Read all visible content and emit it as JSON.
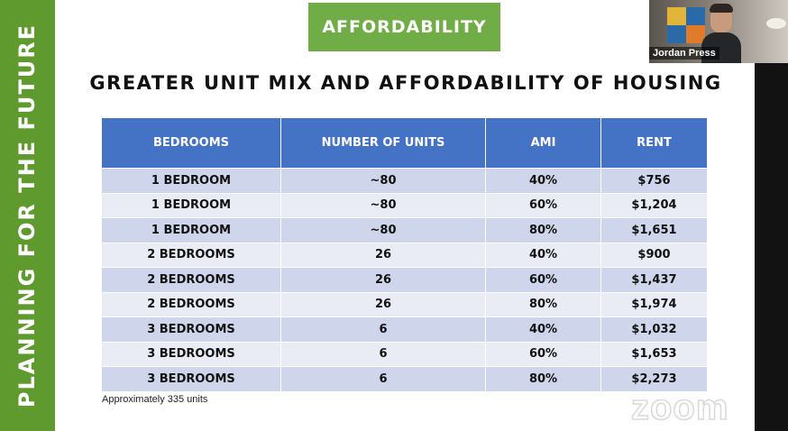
{
  "side_banner": {
    "text": "Planning for the Future"
  },
  "slide": {
    "section_label": "Affordability",
    "headline": "GREATER UNIT MIX AND AFFORDABILITY OF HOUSING",
    "table": {
      "headers": [
        "BEDROOMS",
        "NUMBER OF UNITS",
        "AMI",
        "RENT"
      ],
      "rows": [
        [
          "1 BEDROOM",
          "~80",
          "40%",
          "$756"
        ],
        [
          "1 BEDROOM",
          "~80",
          "60%",
          "$1,204"
        ],
        [
          "1 BEDROOM",
          "~80",
          "80%",
          "$1,651"
        ],
        [
          "2 BEDROOMS",
          "26",
          "40%",
          "$900"
        ],
        [
          "2 BEDROOMS",
          "26",
          "60%",
          "$1,437"
        ],
        [
          "2 BEDROOMS",
          "26",
          "80%",
          "$1,974"
        ],
        [
          "3 BEDROOMS",
          "6",
          "40%",
          "$1,032"
        ],
        [
          "3 BEDROOMS",
          "6",
          "60%",
          "$1,653"
        ],
        [
          "3 BEDROOMS",
          "6",
          "80%",
          "$2,273"
        ]
      ]
    },
    "footnote": "Approximately 335 units"
  },
  "video_tile": {
    "participant_name": "Jordan Press"
  },
  "watermark": {
    "text": "zoom"
  },
  "colors": {
    "side_green": "#5f9a2e",
    "pill_green": "#70ad47",
    "table_header_blue": "#4472c4",
    "row_dark": "#cfd5ea",
    "row_light": "#e9ebf5"
  }
}
